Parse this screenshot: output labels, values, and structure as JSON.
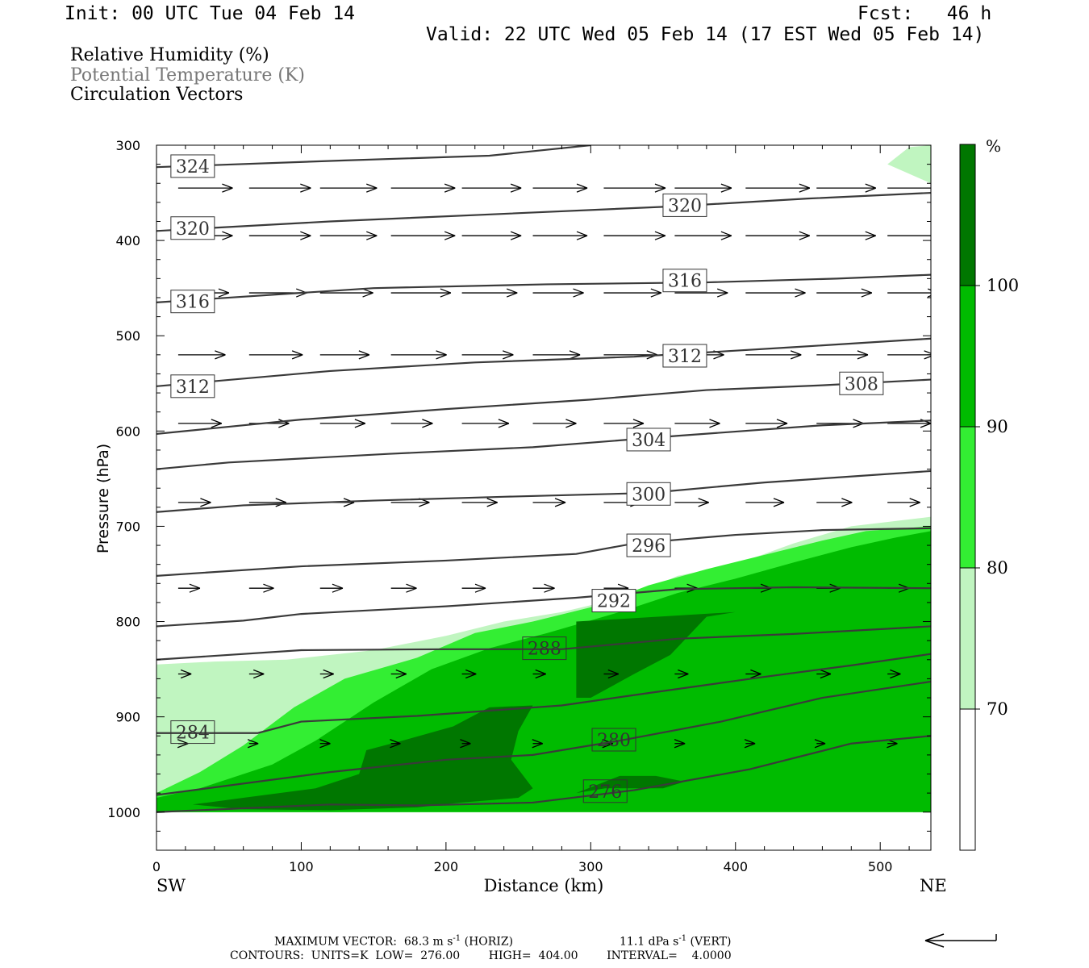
{
  "header": {
    "init": "Init: 00 UTC Tue 04 Feb 14",
    "fcst": "Fcst:   46 h",
    "valid": "Valid: 22 UTC Wed 05 Feb 14 (17 EST Wed 05 Feb 14)"
  },
  "titles": {
    "line1": "Relative Humidity (%)",
    "line2": "Potential Temperature (K)",
    "line3": "Circulation Vectors"
  },
  "colors": {
    "rh70": "#c0f5c0",
    "rh80": "#33ee33",
    "rh90": "#00bb00",
    "rh100": "#007700",
    "theta": "#3a3a3a",
    "title_gray": "#777777"
  },
  "chart_data": {
    "type": "cross-section",
    "xlabel": "Distance (km)",
    "ylabel": "Pressure (hPa)",
    "xlim": [
      0,
      535
    ],
    "ylim": [
      1040,
      300
    ],
    "xticks": [
      "0",
      "100",
      "200",
      "300",
      "400",
      "500"
    ],
    "yticks": [
      "300",
      "400",
      "500",
      "600",
      "700",
      "800",
      "900",
      "1000"
    ],
    "endpoint_left": "SW",
    "endpoint_right": "NE",
    "colorbar": {
      "unit": "%",
      "levels": [
        "70",
        "80",
        "90",
        "100"
      ],
      "colors": [
        "#ffffff",
        "#c0f5c0",
        "#33ee33",
        "#00bb00",
        "#007700"
      ]
    },
    "rh_regions": [
      {
        "level": 70,
        "points": [
          [
            0,
            1000
          ],
          [
            0,
            845
          ],
          [
            40,
            842
          ],
          [
            90,
            840
          ],
          [
            150,
            830
          ],
          [
            200,
            815
          ],
          [
            240,
            800
          ],
          [
            280,
            790
          ],
          [
            330,
            772
          ],
          [
            360,
            752
          ],
          [
            400,
            740
          ],
          [
            440,
            718
          ],
          [
            480,
            700
          ],
          [
            535,
            690
          ],
          [
            535,
            1000
          ]
        ]
      },
      {
        "level": 70,
        "points": [
          [
            505,
            320
          ],
          [
            520,
            302
          ],
          [
            535,
            300
          ],
          [
            535,
            340
          ]
        ]
      },
      {
        "level": 80,
        "points": [
          [
            0,
            1000
          ],
          [
            0,
            980
          ],
          [
            30,
            958
          ],
          [
            60,
            930
          ],
          [
            95,
            890
          ],
          [
            130,
            860
          ],
          [
            180,
            838
          ],
          [
            220,
            812
          ],
          [
            260,
            800
          ],
          [
            300,
            785
          ],
          [
            340,
            762
          ],
          [
            380,
            745
          ],
          [
            420,
            730
          ],
          [
            460,
            715
          ],
          [
            490,
            705
          ],
          [
            535,
            700
          ],
          [
            535,
            1000
          ]
        ]
      },
      {
        "level": 90,
        "points": [
          [
            0,
            1000
          ],
          [
            0,
            985
          ],
          [
            30,
            975
          ],
          [
            80,
            950
          ],
          [
            110,
            925
          ],
          [
            150,
            885
          ],
          [
            190,
            850
          ],
          [
            230,
            828
          ],
          [
            270,
            812
          ],
          [
            320,
            790
          ],
          [
            360,
            770
          ],
          [
            400,
            755
          ],
          [
            440,
            738
          ],
          [
            480,
            722
          ],
          [
            510,
            712
          ],
          [
            535,
            705
          ],
          [
            535,
            1000
          ]
        ]
      },
      {
        "level": 100,
        "points": [
          [
            25,
            992
          ],
          [
            60,
            985
          ],
          [
            110,
            975
          ],
          [
            140,
            960
          ],
          [
            145,
            935
          ],
          [
            170,
            925
          ],
          [
            205,
            910
          ],
          [
            230,
            890
          ],
          [
            260,
            888
          ],
          [
            250,
            915
          ],
          [
            245,
            945
          ],
          [
            260,
            975
          ],
          [
            250,
            985
          ],
          [
            210,
            990
          ],
          [
            180,
            995
          ],
          [
            120,
            998
          ],
          [
            60,
            997
          ]
        ]
      },
      {
        "level": 100,
        "points": [
          [
            290,
            800
          ],
          [
            400,
            790
          ],
          [
            380,
            795
          ],
          [
            355,
            835
          ],
          [
            330,
            855
          ],
          [
            300,
            880
          ],
          [
            290,
            880
          ]
        ]
      },
      {
        "level": 100,
        "points": [
          [
            290,
            980
          ],
          [
            320,
            962
          ],
          [
            345,
            962
          ],
          [
            365,
            968
          ],
          [
            350,
            975
          ],
          [
            310,
            975
          ]
        ]
      }
    ],
    "theta_contours": [
      {
        "value": 324,
        "points": [
          [
            0,
            323
          ],
          [
            130,
            316
          ],
          [
            230,
            311
          ],
          [
            300,
            300
          ]
        ]
      },
      {
        "value": 320,
        "points": [
          [
            0,
            390
          ],
          [
            120,
            380
          ],
          [
            240,
            372
          ],
          [
            360,
            364
          ],
          [
            450,
            356
          ],
          [
            535,
            350
          ]
        ]
      },
      {
        "value": 316,
        "points": [
          [
            0,
            465
          ],
          [
            150,
            450
          ],
          [
            270,
            446
          ],
          [
            380,
            444
          ],
          [
            470,
            440
          ],
          [
            535,
            436
          ]
        ]
      },
      {
        "value": 312,
        "points": [
          [
            0,
            553
          ],
          [
            120,
            537
          ],
          [
            220,
            528
          ],
          [
            330,
            522
          ],
          [
            440,
            512
          ],
          [
            535,
            503
          ]
        ]
      },
      {
        "value": 308,
        "points": [
          [
            0,
            603
          ],
          [
            100,
            588
          ],
          [
            200,
            577
          ],
          [
            300,
            567
          ],
          [
            380,
            557
          ],
          [
            460,
            552
          ],
          [
            535,
            546
          ]
        ]
      },
      {
        "value": 304,
        "points": [
          [
            0,
            640
          ],
          [
            50,
            633
          ],
          [
            160,
            624
          ],
          [
            260,
            617
          ],
          [
            360,
            605
          ],
          [
            460,
            594
          ],
          [
            535,
            589
          ]
        ]
      },
      {
        "value": 300,
        "points": [
          [
            0,
            685
          ],
          [
            60,
            678
          ],
          [
            150,
            673
          ],
          [
            240,
            669
          ],
          [
            340,
            665
          ],
          [
            420,
            654
          ],
          [
            535,
            642
          ]
        ]
      },
      {
        "value": 296,
        "points": [
          [
            0,
            752
          ],
          [
            100,
            742
          ],
          [
            200,
            736
          ],
          [
            290,
            729
          ],
          [
            330,
            718
          ],
          [
            400,
            709
          ],
          [
            460,
            704
          ],
          [
            535,
            702
          ]
        ]
      },
      {
        "value": 292,
        "points": [
          [
            0,
            805
          ],
          [
            60,
            799
          ],
          [
            100,
            792
          ],
          [
            200,
            784
          ],
          [
            290,
            775
          ],
          [
            360,
            766
          ],
          [
            440,
            764
          ],
          [
            535,
            765
          ]
        ]
      },
      {
        "value": 288,
        "points": [
          [
            0,
            840
          ],
          [
            100,
            830
          ],
          [
            200,
            829
          ],
          [
            280,
            829
          ],
          [
            360,
            818
          ],
          [
            440,
            813
          ],
          [
            535,
            805
          ]
        ]
      },
      {
        "value": 284,
        "points": [
          [
            0,
            917
          ],
          [
            70,
            917
          ],
          [
            100,
            905
          ],
          [
            180,
            899
          ],
          [
            280,
            888
          ],
          [
            340,
            875
          ],
          [
            420,
            858
          ],
          [
            480,
            846
          ],
          [
            535,
            834
          ]
        ]
      },
      {
        "value": 280,
        "points": [
          [
            0,
            982
          ],
          [
            120,
            958
          ],
          [
            200,
            945
          ],
          [
            260,
            940
          ],
          [
            320,
            925
          ],
          [
            390,
            905
          ],
          [
            460,
            880
          ],
          [
            535,
            863
          ]
        ]
      },
      {
        "value": 276,
        "points": [
          [
            0,
            1000
          ],
          [
            120,
            992
          ],
          [
            180,
            993
          ],
          [
            260,
            990
          ],
          [
            330,
            977
          ],
          [
            410,
            955
          ],
          [
            480,
            928
          ],
          [
            535,
            920
          ]
        ]
      }
    ],
    "theta_labels": [
      {
        "value": "324",
        "x": 25,
        "p": 322
      },
      {
        "value": "320",
        "x": 365,
        "p": 363
      },
      {
        "value": "320",
        "x": 25,
        "p": 387
      },
      {
        "value": "316",
        "x": 365,
        "p": 442
      },
      {
        "value": "316",
        "x": 25,
        "p": 464
      },
      {
        "value": "312",
        "x": 365,
        "p": 521
      },
      {
        "value": "312",
        "x": 25,
        "p": 553
      },
      {
        "value": "308",
        "x": 487,
        "p": 550
      },
      {
        "value": "304",
        "x": 340,
        "p": 609
      },
      {
        "value": "300",
        "x": 340,
        "p": 666
      },
      {
        "value": "296",
        "x": 340,
        "p": 720
      },
      {
        "value": "292",
        "x": 316,
        "p": 778
      },
      {
        "value": "288",
        "x": 268,
        "p": 828
      },
      {
        "value": "284",
        "x": 25,
        "p": 916
      },
      {
        "value": "280",
        "x": 316,
        "p": 924
      },
      {
        "value": "276",
        "x": 310,
        "p": 978
      }
    ],
    "footer": {
      "max_vector": "MAXIMUM VECTOR:  68.3 m s",
      "horiz_unit": "-1",
      "horiz": " (HORIZ)",
      "max_vert": "11.1 dPa s",
      "vert_unit": "-1",
      "vert": " (VERT)",
      "contours": "CONTOURS:  UNITS=K  LOW=  276.00        HIGH=  404.00        INTERVAL=    4.0000"
    }
  }
}
